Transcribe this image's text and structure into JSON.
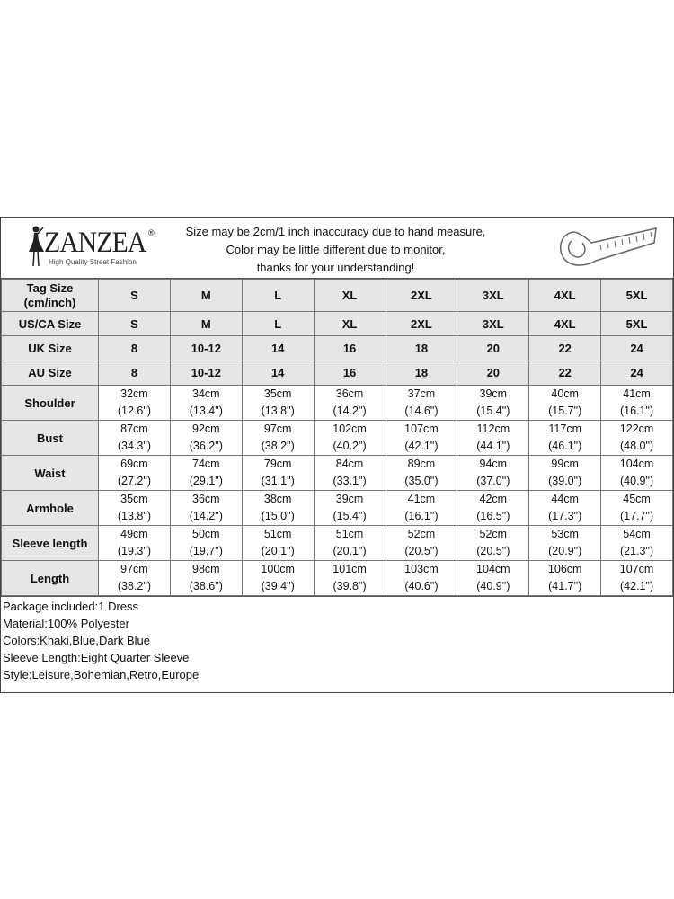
{
  "brand": {
    "name": "ZANZEA",
    "registered": "®",
    "tagline": "High Quality Street Fashion"
  },
  "notice": [
    "Size may be 2cm/1 inch inaccuracy due to hand measure,",
    "Color may be little different due to monitor,",
    "thanks for your understanding!"
  ],
  "size_rows": [
    {
      "label": "Tag Size (cm/inch)",
      "values": [
        "S",
        "M",
        "L",
        "XL",
        "2XL",
        "3XL",
        "4XL",
        "5XL"
      ]
    },
    {
      "label": "US/CA Size",
      "values": [
        "S",
        "M",
        "L",
        "XL",
        "2XL",
        "3XL",
        "4XL",
        "5XL"
      ]
    },
    {
      "label": "UK Size",
      "values": [
        "8",
        "10-12",
        "14",
        "16",
        "18",
        "20",
        "22",
        "24"
      ]
    },
    {
      "label": "AU Size",
      "values": [
        "8",
        "10-12",
        "14",
        "16",
        "18",
        "20",
        "22",
        "24"
      ]
    }
  ],
  "measure_rows": [
    {
      "label": "Shoulder",
      "cm": [
        "32cm",
        "34cm",
        "35cm",
        "36cm",
        "37cm",
        "39cm",
        "40cm",
        "41cm"
      ],
      "inch": [
        "(12.6\")",
        "(13.4\")",
        "(13.8\")",
        "(14.2\")",
        "(14.6\")",
        "(15.4\")",
        "(15.7\")",
        "(16.1\")"
      ]
    },
    {
      "label": "Bust",
      "cm": [
        "87cm",
        "92cm",
        "97cm",
        "102cm",
        "107cm",
        "112cm",
        "117cm",
        "122cm"
      ],
      "inch": [
        "(34.3\")",
        "(36.2\")",
        "(38.2\")",
        "(40.2\")",
        "(42.1\")",
        "(44.1\")",
        "(46.1\")",
        "(48.0\")"
      ]
    },
    {
      "label": "Waist",
      "cm": [
        "69cm",
        "74cm",
        "79cm",
        "84cm",
        "89cm",
        "94cm",
        "99cm",
        "104cm"
      ],
      "inch": [
        "(27.2\")",
        "(29.1\")",
        "(31.1\")",
        "(33.1\")",
        "(35.0\")",
        "(37.0\")",
        "(39.0\")",
        "(40.9\")"
      ]
    },
    {
      "label": "Armhole",
      "cm": [
        "35cm",
        "36cm",
        "38cm",
        "39cm",
        "41cm",
        "42cm",
        "44cm",
        "45cm"
      ],
      "inch": [
        "(13.8\")",
        "(14.2\")",
        "(15.0\")",
        "(15.4\")",
        "(16.1\")",
        "(16.5\")",
        "(17.3\")",
        "(17.7\")"
      ]
    },
    {
      "label": "Sleeve length",
      "cm": [
        "49cm",
        "50cm",
        "51cm",
        "51cm",
        "52cm",
        "52cm",
        "53cm",
        "54cm"
      ],
      "inch": [
        "(19.3\")",
        "(19.7\")",
        "(20.1\")",
        "(20.1\")",
        "(20.5\")",
        "(20.5\")",
        "(20.9\")",
        "(21.3\")"
      ]
    },
    {
      "label": "Length",
      "cm": [
        "97cm",
        "98cm",
        "100cm",
        "101cm",
        "103cm",
        "104cm",
        "106cm",
        "107cm"
      ],
      "inch": [
        "(38.2\")",
        "(38.6\")",
        "(39.4\")",
        "(39.8\")",
        "(40.6\")",
        "(40.9\")",
        "(41.7\")",
        "(42.1\")"
      ]
    }
  ],
  "info": [
    "Package included:1 Dress",
    "Material:100% Polyester",
    "Colors:Khaki,Blue,Dark Blue",
    "Sleeve Length:Eight Quarter Sleeve",
    "Style:Leisure,Bohemian,Retro,Europe"
  ],
  "icons": {
    "logo": "woman-silhouette-logo",
    "tape": "measuring-tape-icon"
  }
}
